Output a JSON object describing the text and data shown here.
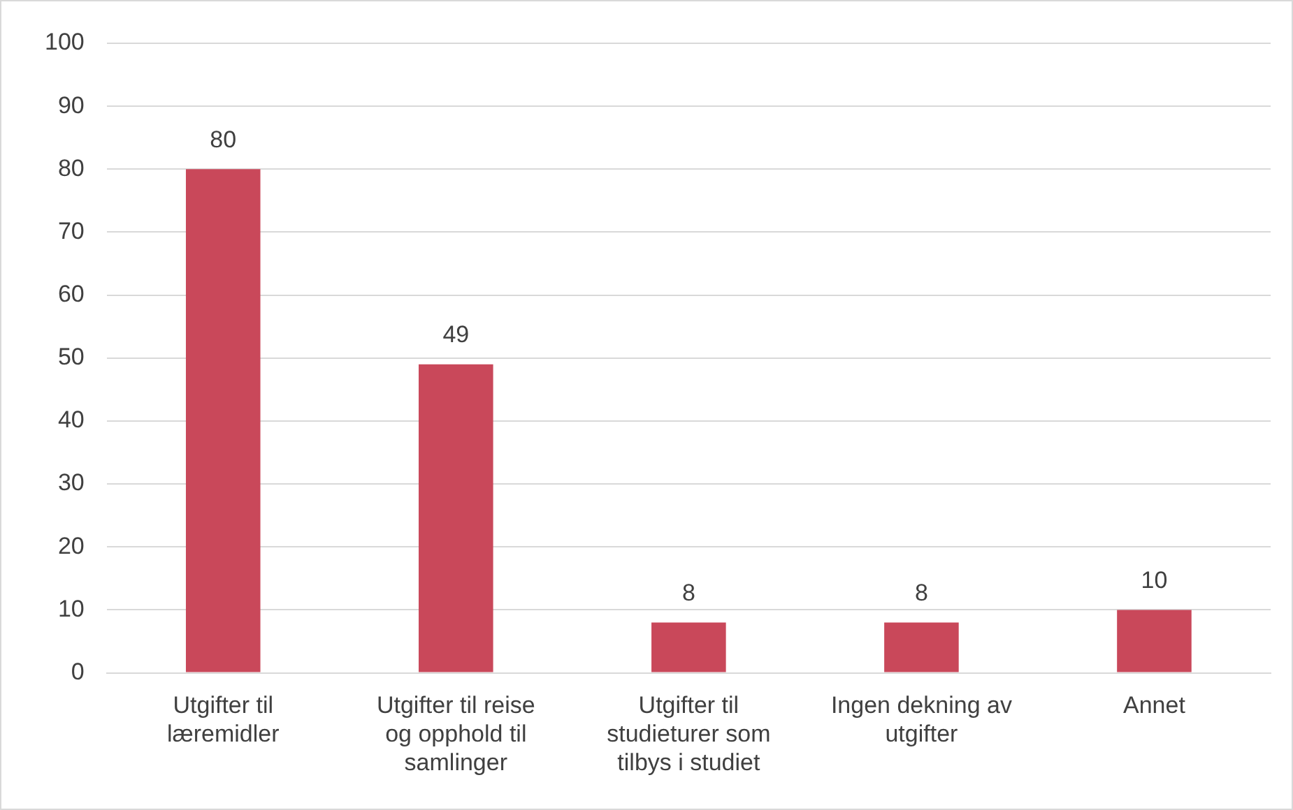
{
  "chart_data": {
    "type": "bar",
    "categories": [
      "Utgifter til læremidler",
      "Utgifter til reise og opphold til samlinger",
      "Utgifter til studieturer som tilbys i studiet",
      "Ingen dekning av utgifter",
      "Annet"
    ],
    "values": [
      80,
      49,
      8,
      8,
      10
    ],
    "color": "#c9485a",
    "ylim": [
      0,
      100
    ],
    "yticks": [
      0,
      10,
      20,
      30,
      40,
      50,
      60,
      70,
      80,
      90,
      100
    ],
    "grid": "y",
    "data_labels": true,
    "legend": false
  }
}
